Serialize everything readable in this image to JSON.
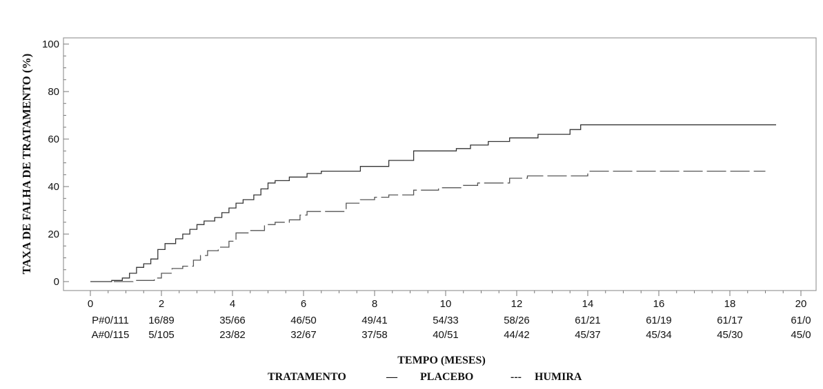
{
  "chart_data": {
    "type": "line",
    "step": true,
    "xlabel": "TEMPO (MESES)",
    "ylabel": "TAXA DE FALHA DE TRATAMENTO (%)",
    "xlim": [
      0,
      20
    ],
    "ylim": [
      0,
      100
    ],
    "x_ticks": [
      0,
      2,
      4,
      6,
      8,
      10,
      12,
      14,
      16,
      18,
      20
    ],
    "y_ticks": [
      0,
      20,
      40,
      60,
      80,
      100
    ],
    "y_tick_labels": [
      "0",
      "20",
      "40",
      "60",
      "80",
      "100"
    ],
    "legend": {
      "title": "TRATAMENTO",
      "entries": [
        {
          "label": "PLACEBO",
          "symbol": "—"
        },
        {
          "label": "HUMIRA",
          "symbol": "---"
        }
      ],
      "position": "bottom"
    },
    "series": [
      {
        "name": "PLACEBO",
        "style": "solid",
        "color": "#333333",
        "points": [
          [
            0,
            0
          ],
          [
            0.6,
            0.5
          ],
          [
            0.9,
            1.5
          ],
          [
            1.1,
            3.5
          ],
          [
            1.3,
            6
          ],
          [
            1.5,
            7.5
          ],
          [
            1.7,
            9.5
          ],
          [
            1.9,
            13.5
          ],
          [
            2.1,
            16
          ],
          [
            2.4,
            18
          ],
          [
            2.6,
            20
          ],
          [
            2.8,
            22
          ],
          [
            3.0,
            24
          ],
          [
            3.2,
            25.5
          ],
          [
            3.5,
            27
          ],
          [
            3.7,
            29
          ],
          [
            3.9,
            31
          ],
          [
            4.1,
            33
          ],
          [
            4.3,
            34.5
          ],
          [
            4.6,
            36.5
          ],
          [
            4.8,
            39
          ],
          [
            5.0,
            41.5
          ],
          [
            5.2,
            42.5
          ],
          [
            5.6,
            44
          ],
          [
            6.1,
            45.5
          ],
          [
            6.5,
            46.5
          ],
          [
            7.6,
            48.5
          ],
          [
            8.4,
            51
          ],
          [
            9.1,
            55
          ],
          [
            10.3,
            56
          ],
          [
            10.7,
            57.5
          ],
          [
            11.2,
            59
          ],
          [
            11.8,
            60.5
          ],
          [
            12.6,
            62
          ],
          [
            13.5,
            64
          ],
          [
            13.8,
            66
          ],
          [
            19.3,
            66
          ]
        ]
      },
      {
        "name": "HUMIRA",
        "style": "dashed",
        "color": "#555555",
        "points": [
          [
            0,
            0
          ],
          [
            1.2,
            0.5
          ],
          [
            1.8,
            1.5
          ],
          [
            2.0,
            3.5
          ],
          [
            2.3,
            5.5
          ],
          [
            2.6,
            6.5
          ],
          [
            2.9,
            9
          ],
          [
            3.1,
            11
          ],
          [
            3.3,
            13
          ],
          [
            3.6,
            14.5
          ],
          [
            3.9,
            17
          ],
          [
            4.1,
            20.5
          ],
          [
            4.5,
            21.5
          ],
          [
            4.9,
            24
          ],
          [
            5.2,
            25
          ],
          [
            5.6,
            26
          ],
          [
            5.9,
            28
          ],
          [
            6.1,
            29.5
          ],
          [
            7.2,
            33
          ],
          [
            7.6,
            34.5
          ],
          [
            8.0,
            35.5
          ],
          [
            8.4,
            36.5
          ],
          [
            9.1,
            38.5
          ],
          [
            9.8,
            39.5
          ],
          [
            10.5,
            40.5
          ],
          [
            10.9,
            41.5
          ],
          [
            11.8,
            43.5
          ],
          [
            12.3,
            44.5
          ],
          [
            14.0,
            46.5
          ],
          [
            19.0,
            46.5
          ]
        ]
      }
    ],
    "risk_table": {
      "rows": [
        {
          "label": "P#",
          "values": [
            "0/111",
            "16/89",
            "35/66",
            "46/50",
            "49/41",
            "54/33",
            "58/26",
            "61/21",
            "61/19",
            "61/17",
            "61/0"
          ]
        },
        {
          "label": "A#",
          "values": [
            "0/115",
            "5/105",
            "23/82",
            "32/67",
            "37/58",
            "40/51",
            "44/42",
            "45/37",
            "45/34",
            "45/30",
            "45/0"
          ]
        }
      ]
    },
    "grid": false
  }
}
